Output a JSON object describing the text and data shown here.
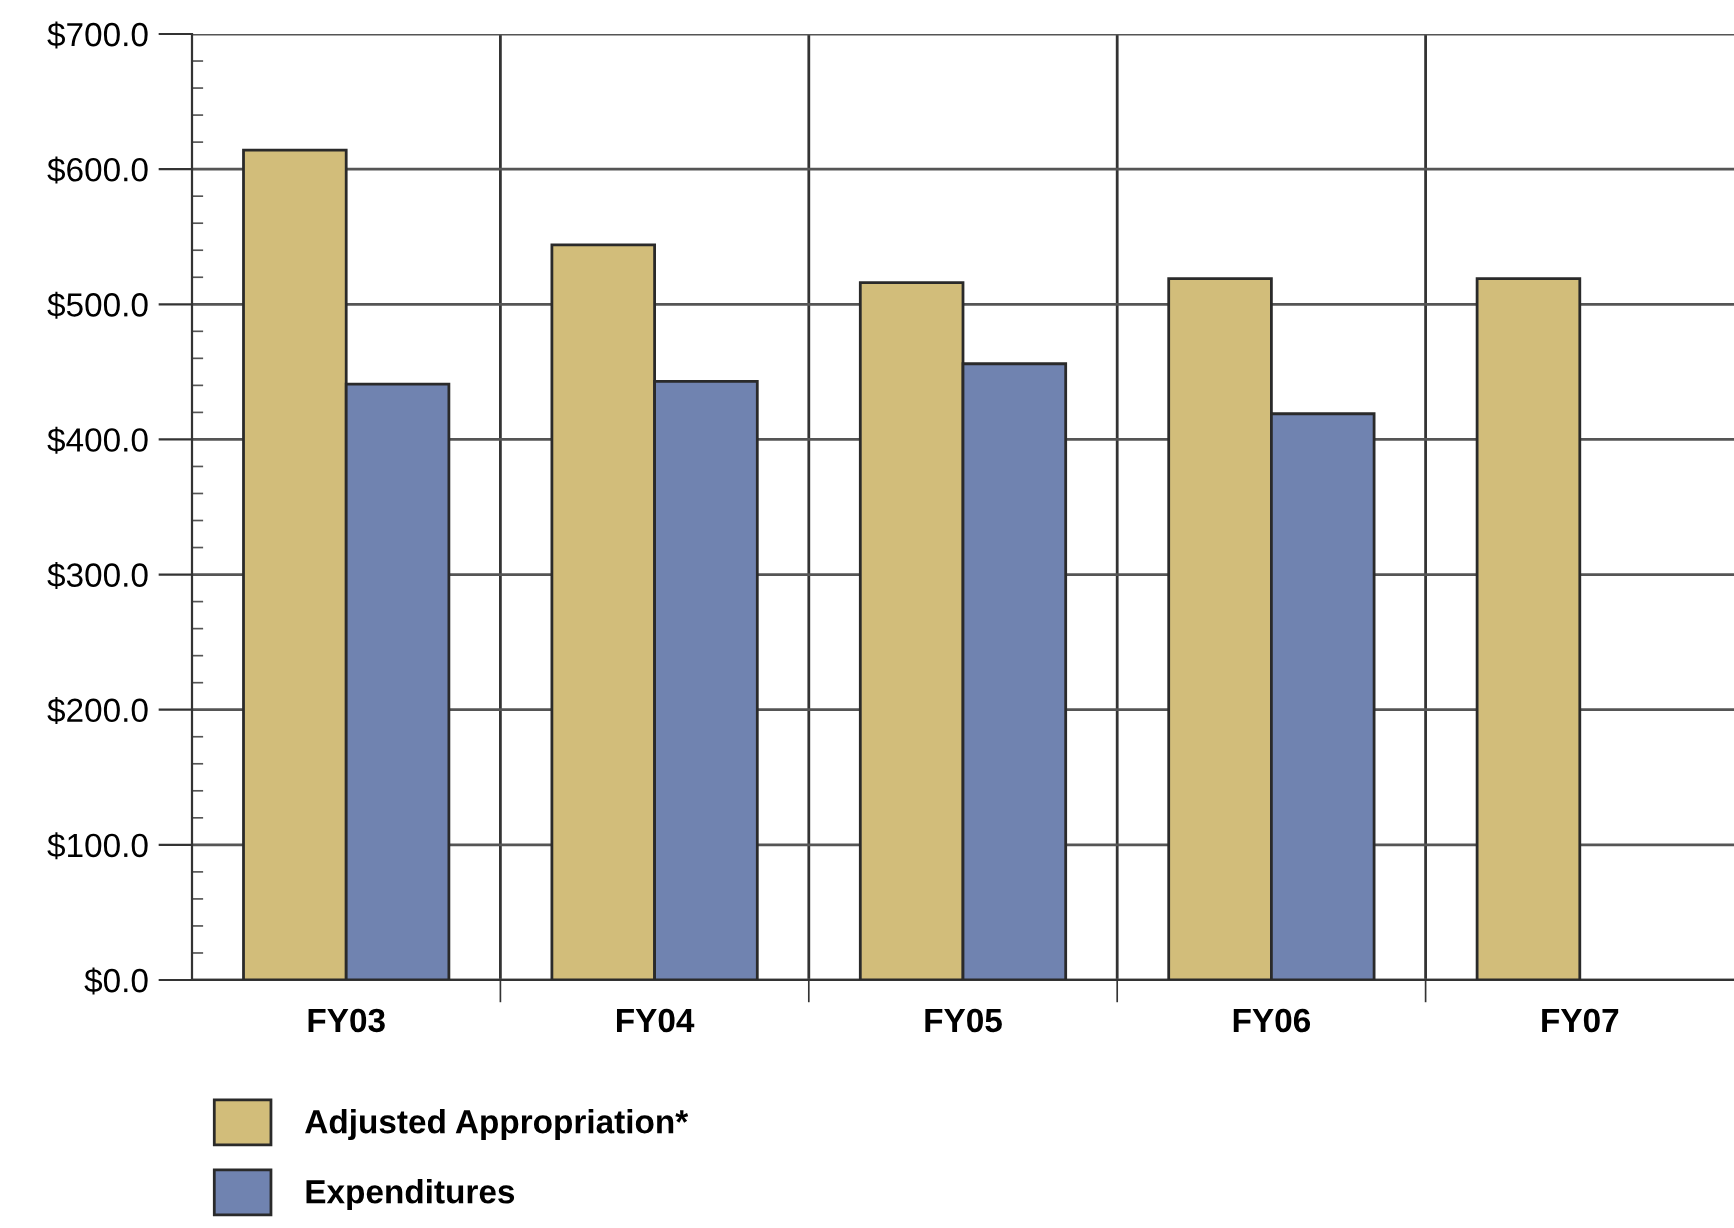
{
  "chart_data": {
    "type": "bar",
    "categories": [
      "FY03",
      "FY04",
      "FY05",
      "FY06",
      "FY07"
    ],
    "series": [
      {
        "name": "Adjusted Appropriation*",
        "color": "#d2bd7a",
        "values": [
          614,
          544,
          516,
          519,
          519
        ]
      },
      {
        "name": "Expenditures",
        "color": "#7083b0",
        "values": [
          441,
          443,
          456,
          419,
          null
        ]
      }
    ],
    "ylim": [
      0,
      700
    ],
    "yticks": [
      {
        "value": 0,
        "label": "$0.0"
      },
      {
        "value": 100,
        "label": "$100.0"
      },
      {
        "value": 200,
        "label": "$200.0"
      },
      {
        "value": 300,
        "label": "$300.0"
      },
      {
        "value": 400,
        "label": "$400.0"
      },
      {
        "value": 500,
        "label": "$500.0"
      },
      {
        "value": 600,
        "label": "$600.0"
      },
      {
        "value": 700,
        "label": "$700.0"
      }
    ],
    "grid": true,
    "legend": "bottom left"
  }
}
